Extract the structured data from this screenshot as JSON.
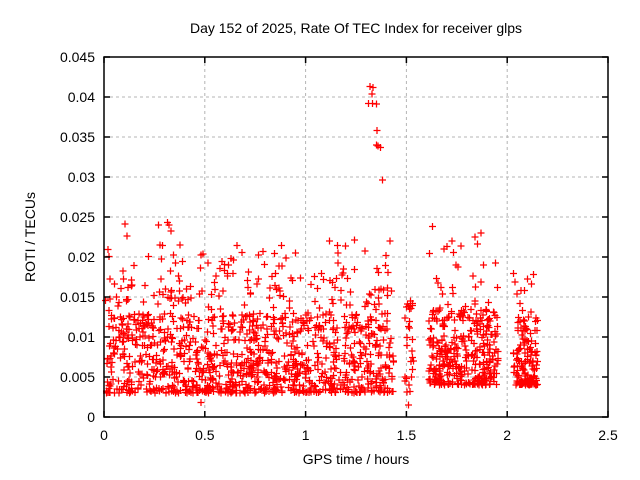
{
  "window": {
    "background": "#ffffff"
  },
  "chart_data": {
    "type": "scatter",
    "title": "Day 152 of 2025, Rate Of TEC Index for receiver glps",
    "xlabel": "GPS time / hours",
    "ylabel": "ROTI / TECUs",
    "xlim": [
      0,
      2.5
    ],
    "ylim": [
      0,
      0.045
    ],
    "xtick_values": [
      0,
      0.5,
      1,
      1.5,
      2,
      2.5
    ],
    "xtick_labels": [
      "0",
      "0.5",
      "1",
      "1.5",
      "2",
      "2.5"
    ],
    "ytick_values": [
      0,
      0.005,
      0.01,
      0.015,
      0.02,
      0.025,
      0.03,
      0.035,
      0.04,
      0.045
    ],
    "ytick_labels": [
      "0",
      "0.005",
      "0.01",
      "0.015",
      "0.02",
      "0.025",
      "0.03",
      "0.035",
      "0.04",
      "0.045"
    ],
    "grid": true,
    "grid_color": "#b4b4b4",
    "axis_color": "#000000",
    "legend": "none",
    "marker": {
      "shape": "plus",
      "color": "#ff0000",
      "size": 7
    },
    "seed": 20251521,
    "series": [
      {
        "name": "ROTI for receiver glps",
        "color": "#ff0000",
        "clusters": [
          {
            "x": [
              0.005,
              1.44
            ],
            "n": 950,
            "y": [
              0.003,
              0.013
            ],
            "pow": 1.6
          },
          {
            "x": [
              0.005,
              1.44
            ],
            "n": 140,
            "y": [
              0.011,
              0.0205
            ],
            "pow": 2.0
          },
          {
            "x": [
              0.0,
              0.14
            ],
            "n": 14,
            "y": [
              0.0145,
              0.0245
            ],
            "pow": 1.6
          },
          {
            "x": [
              0.27,
              0.4
            ],
            "n": 22,
            "y": [
              0.0145,
              0.0245
            ],
            "pow": 1.4
          },
          {
            "x": [
              0.55,
              0.72
            ],
            "n": 13,
            "y": [
              0.014,
              0.0215
            ],
            "pow": 1.5
          },
          {
            "x": [
              0.78,
              0.95
            ],
            "n": 14,
            "y": [
              0.014,
              0.0218
            ],
            "pow": 1.5
          },
          {
            "x": [
              1.1,
              1.3
            ],
            "n": 16,
            "y": [
              0.014,
              0.0235
            ],
            "pow": 1.5
          },
          {
            "x": [
              1.3,
              1.43
            ],
            "n": 14,
            "y": [
              0.014,
              0.0225
            ],
            "pow": 1.4
          },
          {
            "x": [
              1.49,
              1.535
            ],
            "n": 28,
            "y": [
              0.003,
              0.0145
            ],
            "pow": 1.5
          },
          {
            "x": [
              1.61,
              1.955
            ],
            "n": 320,
            "y": [
              0.004,
              0.0135
            ],
            "pow": 1.6
          },
          {
            "x": [
              1.61,
              1.955
            ],
            "n": 48,
            "y": [
              0.012,
              0.0238
            ],
            "pow": 2.2
          },
          {
            "x": [
              2.03,
              2.15
            ],
            "n": 130,
            "y": [
              0.004,
              0.0125
            ],
            "pow": 1.6
          },
          {
            "x": [
              2.03,
              2.15
            ],
            "n": 12,
            "y": [
              0.012,
              0.0185
            ],
            "pow": 1.8
          }
        ],
        "outlier_points": [
          [
            1.32,
            0.0413
          ],
          [
            1.335,
            0.0412
          ],
          [
            1.33,
            0.0404
          ],
          [
            1.312,
            0.0392
          ],
          [
            1.333,
            0.0392
          ],
          [
            1.352,
            0.0391
          ],
          [
            1.355,
            0.0358
          ],
          [
            1.352,
            0.034
          ],
          [
            1.36,
            0.0339
          ],
          [
            1.372,
            0.0337
          ],
          [
            1.382,
            0.0296
          ],
          [
            2.13,
            0.0178
          ],
          [
            1.51,
            0.0015
          ],
          [
            0.48,
            0.0018
          ],
          [
            0.104,
            0.0241
          ],
          [
            0.315,
            0.0243
          ],
          [
            1.63,
            0.0238
          ],
          [
            1.87,
            0.023
          ]
        ]
      }
    ]
  }
}
